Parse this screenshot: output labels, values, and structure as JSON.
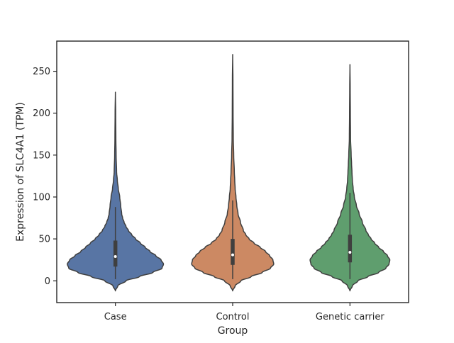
{
  "chart_data": {
    "type": "violin",
    "title": "",
    "xlabel": "Group",
    "ylabel": "Expression of SLC4A1 (TPM)",
    "ylim": [
      -26,
      286
    ],
    "yticks": [
      0,
      50,
      100,
      150,
      200,
      250
    ],
    "grid": false,
    "categories": [
      "Case",
      "Control",
      "Genetic carrier"
    ],
    "series": [
      {
        "category": "Case",
        "color": "#5875a4",
        "median": 29,
        "q1": 17,
        "q3": 48,
        "whisker_low": 2,
        "whisker_high": 88,
        "min": -12,
        "max": 225,
        "max_half_width_data": 0.41,
        "density": [
          [
            -12,
            0.0
          ],
          [
            -6,
            0.05
          ],
          [
            0,
            0.22
          ],
          [
            5,
            0.5
          ],
          [
            10,
            0.78
          ],
          [
            15,
            0.97
          ],
          [
            20,
            1.0
          ],
          [
            25,
            0.95
          ],
          [
            30,
            0.84
          ],
          [
            35,
            0.72
          ],
          [
            40,
            0.62
          ],
          [
            45,
            0.52
          ],
          [
            50,
            0.42
          ],
          [
            55,
            0.34
          ],
          [
            60,
            0.27
          ],
          [
            65,
            0.22
          ],
          [
            70,
            0.18
          ],
          [
            75,
            0.15
          ],
          [
            80,
            0.13
          ],
          [
            90,
            0.11
          ],
          [
            100,
            0.09
          ],
          [
            110,
            0.06
          ],
          [
            120,
            0.04
          ],
          [
            130,
            0.025
          ],
          [
            150,
            0.015
          ],
          [
            170,
            0.01
          ],
          [
            200,
            0.006
          ],
          [
            225,
            0.0
          ]
        ]
      },
      {
        "category": "Control",
        "color": "#cc8963",
        "median": 31,
        "q1": 19,
        "q3": 50,
        "whisker_low": 2,
        "whisker_high": 96,
        "min": -12,
        "max": 270,
        "max_half_width_data": 0.35,
        "density": [
          [
            -12,
            0.0
          ],
          [
            -6,
            0.06
          ],
          [
            0,
            0.2
          ],
          [
            5,
            0.45
          ],
          [
            10,
            0.72
          ],
          [
            15,
            0.92
          ],
          [
            20,
            1.0
          ],
          [
            25,
            0.98
          ],
          [
            30,
            0.9
          ],
          [
            35,
            0.8
          ],
          [
            40,
            0.67
          ],
          [
            45,
            0.52
          ],
          [
            50,
            0.4
          ],
          [
            55,
            0.32
          ],
          [
            60,
            0.26
          ],
          [
            70,
            0.19
          ],
          [
            80,
            0.13
          ],
          [
            90,
            0.1
          ],
          [
            100,
            0.08
          ],
          [
            110,
            0.06
          ],
          [
            120,
            0.05
          ],
          [
            130,
            0.04
          ],
          [
            150,
            0.025
          ],
          [
            170,
            0.015
          ],
          [
            200,
            0.01
          ],
          [
            240,
            0.007
          ],
          [
            270,
            0.0
          ]
        ]
      },
      {
        "category": "Genetic carrier",
        "color": "#5f9e6e",
        "median": 34,
        "q1": 22,
        "q3": 55,
        "whisker_low": 2,
        "whisker_high": 105,
        "min": -12,
        "max": 258,
        "max_half_width_data": 0.34,
        "density": [
          [
            -12,
            0.0
          ],
          [
            -6,
            0.06
          ],
          [
            0,
            0.2
          ],
          [
            5,
            0.45
          ],
          [
            10,
            0.72
          ],
          [
            15,
            0.9
          ],
          [
            20,
            0.98
          ],
          [
            25,
            1.0
          ],
          [
            30,
            0.94
          ],
          [
            35,
            0.84
          ],
          [
            40,
            0.72
          ],
          [
            45,
            0.62
          ],
          [
            50,
            0.53
          ],
          [
            55,
            0.46
          ],
          [
            60,
            0.4
          ],
          [
            70,
            0.31
          ],
          [
            80,
            0.23
          ],
          [
            90,
            0.16
          ],
          [
            100,
            0.11
          ],
          [
            110,
            0.08
          ],
          [
            120,
            0.06
          ],
          [
            130,
            0.05
          ],
          [
            140,
            0.04
          ],
          [
            150,
            0.03
          ],
          [
            170,
            0.015
          ],
          [
            200,
            0.01
          ],
          [
            230,
            0.006
          ],
          [
            258,
            0.0
          ]
        ]
      }
    ]
  }
}
